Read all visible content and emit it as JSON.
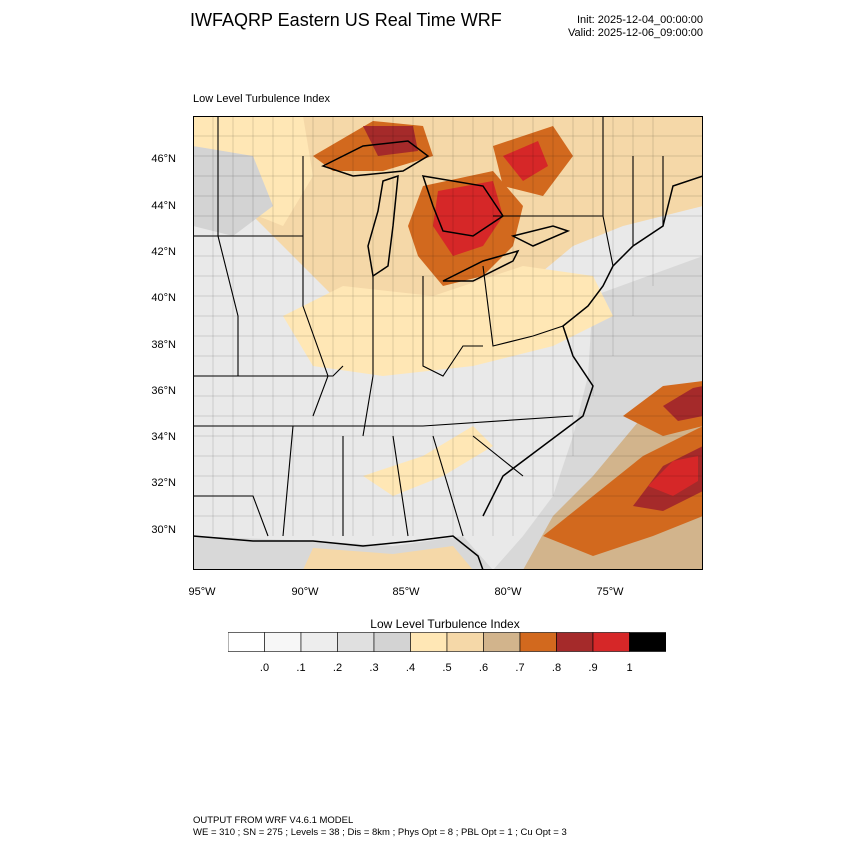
{
  "header": {
    "title": "IWFAQRP Eastern US Real Time WRF",
    "init": "Init: 2025-12-04_00:00:00",
    "valid": "Valid: 2025-12-06_09:00:00"
  },
  "field_title": "Low Level Turbulence Index",
  "map": {
    "latitude_labels": [
      "46°N",
      "44°N",
      "42°N",
      "40°N",
      "38°N",
      "36°N",
      "34°N",
      "32°N",
      "30°N"
    ],
    "longitude_labels": [
      "95°W",
      "90°W",
      "85°W",
      "80°W",
      "75°W"
    ],
    "boundary_color": "#000000"
  },
  "colorbar": {
    "title": "Low Level Turbulence Index",
    "labels": [
      ".0",
      ".1",
      ".2",
      ".3",
      ".4",
      ".5",
      ".6",
      ".7",
      ".8",
      ".9",
      "1"
    ],
    "colors": [
      "#ffffff",
      "#f7f7f7",
      "#ededed",
      "#e0e0e0",
      "#d3d3d3",
      "#ffe7b5",
      "#f5d8a8",
      "#d2b48c",
      "#d2691e",
      "#a52a2a",
      "#d62728",
      "#000000"
    ]
  },
  "footer": {
    "line1": "OUTPUT FROM WRF V4.6.1 MODEL",
    "line2": "WE = 310 ; SN = 275 ; Levels = 38 ; Dis = 8km ; Phys Opt = 8 ; PBL Opt = 1 ; Cu Opt = 3"
  }
}
